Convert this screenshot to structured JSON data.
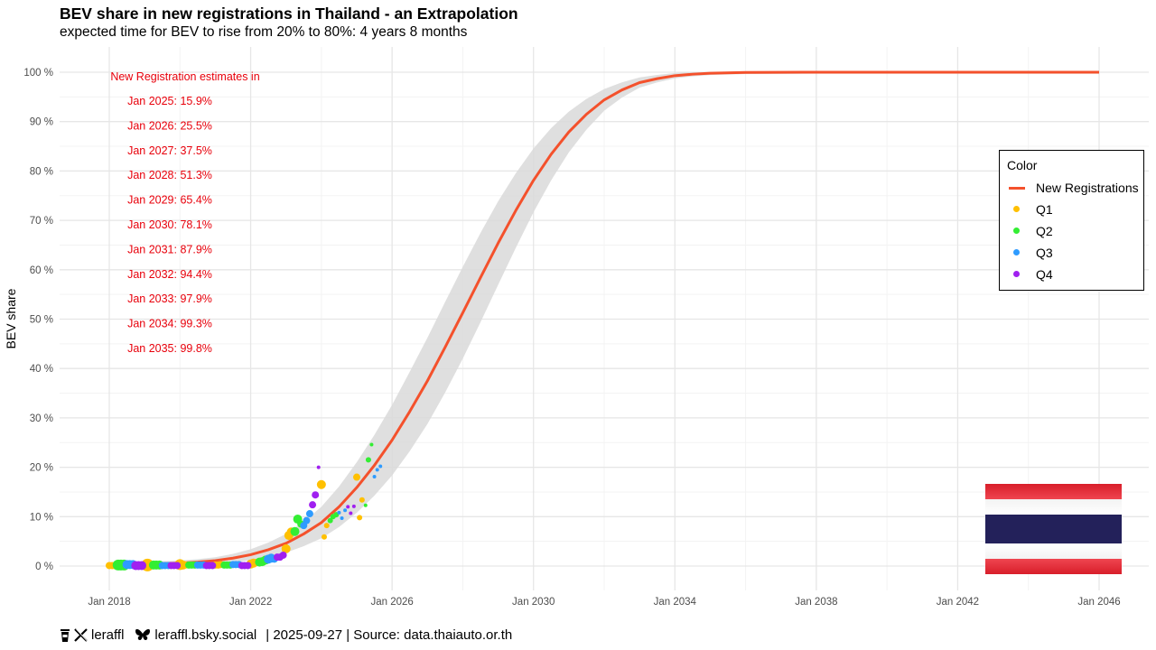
{
  "title": "BEV share in new registrations in Thailand - an Extrapolation",
  "subtitle": "expected time for BEV to rise from 20% to 80%: 4 years 8 months",
  "footer": {
    "handle_x": "leraffl",
    "handle_bsky": "leraffl.bsky.social",
    "meta": "| 2025-09-27 | Source: data.thaiauto.or.th"
  },
  "legend": {
    "title": "Color",
    "items": [
      {
        "label": "New Registrations",
        "kind": "line",
        "color": "#F4512C"
      },
      {
        "label": "Q1",
        "kind": "point",
        "color": "#FFC000"
      },
      {
        "label": "Q2",
        "kind": "point",
        "color": "#33EE33"
      },
      {
        "label": "Q3",
        "kind": "point",
        "color": "#2E9BFF"
      },
      {
        "label": "Q4",
        "kind": "point",
        "color": "#A020F0"
      }
    ]
  },
  "annotation": {
    "header": "New Registration estimates in",
    "lines": [
      "Jan 2025: 15.9%",
      "Jan 2026: 25.5%",
      "Jan 2027: 37.5%",
      "Jan 2028: 51.3%",
      "Jan 2029: 65.4%",
      "Jan 2030: 78.1%",
      "Jan 2031: 87.9%",
      "Jan 2032: 94.4%",
      "Jan 2033: 97.9%",
      "Jan 2034: 99.3%",
      "Jan 2035: 99.8%"
    ],
    "color": "#E8000B"
  },
  "chart_data": {
    "type": "line",
    "title": "BEV share in new registrations in Thailand - an Extrapolation",
    "subtitle": "expected time for BEV to rise from 20% to 80%: 4 years 8 months",
    "xlabel": "",
    "ylabel": "BEV share",
    "x_ticks": [
      "Jan 2018",
      "Jan 2022",
      "Jan 2026",
      "Jan 2030",
      "Jan 2034",
      "Jan 2038",
      "Jan 2042",
      "Jan 2046"
    ],
    "y_ticks": [
      "0 %",
      "10 %",
      "20 %",
      "30 %",
      "40 %",
      "50 %",
      "60 %",
      "70 %",
      "80 %",
      "90 %",
      "100 %"
    ],
    "xlim": [
      2016.6,
      2047.3
    ],
    "ylim": [
      -5,
      105
    ],
    "grid": true,
    "legend_position": "right",
    "series": [
      {
        "name": "New Registrations",
        "kind": "line",
        "color": "#F4512C",
        "confidence_band": true,
        "x": [
          2018.0,
          2019.0,
          2020.0,
          2020.5,
          2021.0,
          2021.5,
          2022.0,
          2022.5,
          2023.0,
          2023.5,
          2024.0,
          2024.5,
          2025.0,
          2025.5,
          2026.0,
          2026.5,
          2027.0,
          2027.5,
          2028.0,
          2028.5,
          2029.0,
          2029.5,
          2030.0,
          2030.5,
          2031.0,
          2031.5,
          2032.0,
          2032.5,
          2033.0,
          2033.5,
          2034.0,
          2034.5,
          2035.0,
          2036.0,
          2038.0,
          2042.0,
          2046.0
        ],
        "y": [
          0.2,
          0.4,
          0.6,
          0.8,
          1.1,
          1.6,
          2.3,
          3.3,
          4.6,
          6.5,
          8.8,
          12.0,
          15.9,
          20.4,
          25.5,
          31.3,
          37.5,
          44.3,
          51.3,
          58.4,
          65.4,
          72.0,
          78.1,
          83.4,
          87.9,
          91.5,
          94.4,
          96.4,
          97.9,
          98.7,
          99.3,
          99.6,
          99.8,
          99.95,
          100,
          100,
          100
        ]
      },
      {
        "name": "Q1",
        "kind": "point",
        "color": "#FFC000",
        "x": [
          2018.0,
          2018.08,
          2018.15,
          2019.0,
          2019.08,
          2019.15,
          2020.0,
          2020.08,
          2020.15,
          2021.0,
          2021.08,
          2021.15,
          2022.0,
          2022.08,
          2022.15,
          2023.0,
          2023.08,
          2023.15,
          2024.0,
          2024.08,
          2024.15,
          2025.0,
          2025.08,
          2025.15
        ],
        "y": [
          0.1,
          0.1,
          0.1,
          0.1,
          0.2,
          0.2,
          0.3,
          0.2,
          0.2,
          0.2,
          0.2,
          0.3,
          0.4,
          0.6,
          0.7,
          3.5,
          6.2,
          6.9,
          16.5,
          5.9,
          8.2,
          18.0,
          9.8,
          13.4
        ],
        "sizes": [
          4,
          4,
          4,
          5,
          7,
          5,
          6,
          5,
          4,
          4,
          4,
          4,
          5,
          5,
          4,
          5,
          5,
          5,
          5,
          3,
          3,
          4,
          3,
          3
        ]
      },
      {
        "name": "Q2",
        "kind": "point",
        "color": "#33EE33",
        "x": [
          2018.25,
          2018.33,
          2018.42,
          2019.25,
          2019.33,
          2019.42,
          2020.25,
          2020.33,
          2020.42,
          2021.25,
          2021.33,
          2021.42,
          2022.25,
          2022.33,
          2022.42,
          2023.25,
          2023.33,
          2023.42,
          2024.25,
          2024.33,
          2024.42,
          2025.25,
          2025.33,
          2025.42
        ],
        "y": [
          0.2,
          0.2,
          0.2,
          0.2,
          0.2,
          0.2,
          0.2,
          0.2,
          0.2,
          0.2,
          0.2,
          0.2,
          0.8,
          0.9,
          1.2,
          7.0,
          9.5,
          8.5,
          9.2,
          10.0,
          10.4,
          12.3,
          21.5,
          24.6
        ],
        "sizes": [
          6,
          6,
          6,
          5,
          5,
          5,
          4,
          4,
          4,
          4,
          4,
          4,
          5,
          5,
          5,
          5,
          5,
          4,
          3,
          3,
          3,
          2,
          3,
          2
        ]
      },
      {
        "name": "Q3",
        "kind": "point",
        "color": "#2E9BFF",
        "x": [
          2018.5,
          2018.58,
          2018.67,
          2019.5,
          2019.58,
          2019.67,
          2020.5,
          2020.58,
          2020.67,
          2021.5,
          2021.58,
          2021.67,
          2022.5,
          2022.58,
          2022.67,
          2023.5,
          2023.58,
          2023.67,
          2024.5,
          2024.58,
          2024.67,
          2025.5,
          2025.58,
          2025.67
        ],
        "y": [
          0.3,
          0.3,
          0.3,
          0.1,
          0.1,
          0.1,
          0.2,
          0.2,
          0.2,
          0.3,
          0.3,
          0.3,
          1.4,
          1.6,
          1.4,
          8.2,
          9.2,
          10.6,
          10.8,
          9.7,
          11.3,
          18.1,
          19.5,
          20.2
        ],
        "sizes": [
          5,
          5,
          5,
          4,
          4,
          4,
          4,
          4,
          4,
          4,
          4,
          4,
          5,
          5,
          4,
          4,
          4,
          4,
          2,
          2,
          2,
          2,
          2,
          2
        ]
      },
      {
        "name": "Q4",
        "kind": "point",
        "color": "#A020F0",
        "x": [
          2018.75,
          2018.83,
          2018.92,
          2019.75,
          2019.83,
          2019.92,
          2020.75,
          2020.83,
          2020.92,
          2021.75,
          2021.83,
          2021.92,
          2022.75,
          2022.83,
          2022.92,
          2023.75,
          2023.83,
          2023.92,
          2024.75,
          2024.83,
          2024.92
        ],
        "y": [
          0.1,
          0.1,
          0.1,
          0.1,
          0.1,
          0.1,
          0.1,
          0.1,
          0.1,
          0.1,
          0.1,
          0.1,
          1.8,
          1.8,
          2.2,
          12.4,
          14.4,
          20.0,
          12.0,
          10.7,
          12.1
        ],
        "sizes": [
          5,
          5,
          5,
          4,
          4,
          4,
          4,
          4,
          4,
          4,
          4,
          4,
          4,
          4,
          4,
          4,
          4,
          2,
          2,
          2,
          2
        ]
      }
    ]
  }
}
